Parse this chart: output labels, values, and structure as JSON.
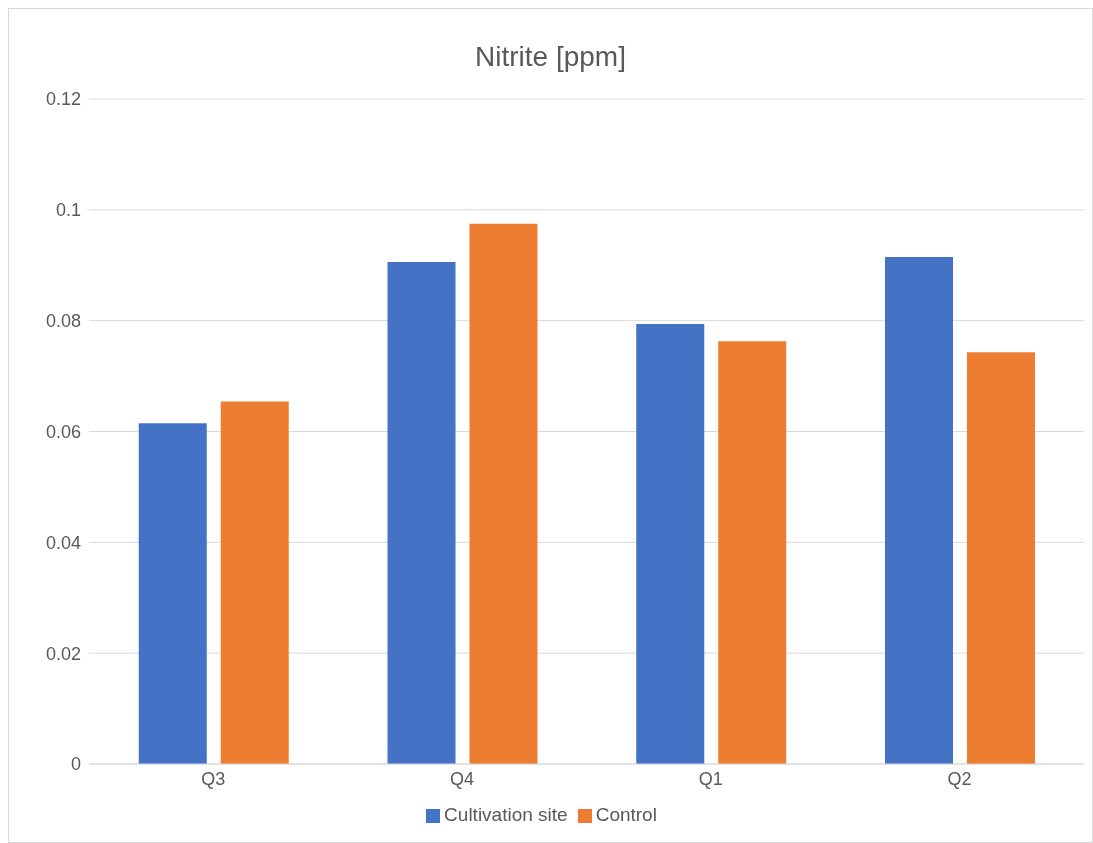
{
  "chart_data": {
    "type": "bar",
    "title": "Nitrite [ppm]",
    "categories": [
      "Q3",
      "Q4",
      "Q1",
      "Q2"
    ],
    "series": [
      {
        "name": "Cultivation site",
        "color": "#4472c4",
        "values": [
          0.0615,
          0.0906,
          0.0794,
          0.0915
        ]
      },
      {
        "name": "Control",
        "color": "#ed7d31",
        "values": [
          0.0654,
          0.0975,
          0.0763,
          0.0743
        ]
      }
    ],
    "ylim": [
      0,
      0.12
    ],
    "yticks": [
      0,
      0.02,
      0.04,
      0.06,
      0.08,
      0.1,
      0.12
    ],
    "grid": "y",
    "legend": "bottom"
  }
}
